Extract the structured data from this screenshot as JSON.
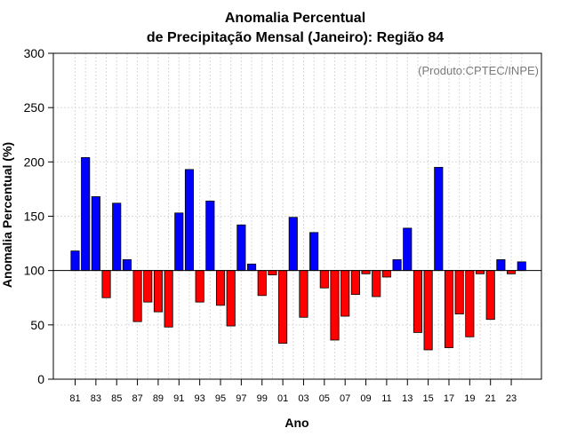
{
  "chart_data": {
    "type": "bar",
    "title": [
      "Anomalia Percentual",
      "de Precipitação Mensal (Janeiro): Região 84"
    ],
    "xlabel": "Ano",
    "ylabel": "Anomalia Percentual (%)",
    "annotation": "(Produto:CPTEC/INPE)",
    "ylim": [
      0,
      300
    ],
    "baseline": 100,
    "yticks": [
      0,
      50,
      100,
      150,
      200,
      250,
      300
    ],
    "grid": true,
    "colors": {
      "above": "#0000ff",
      "below": "#ff0000",
      "axis": "#000000",
      "grid": "#d9d9d9"
    },
    "categories": [
      "81",
      "82",
      "83",
      "84",
      "85",
      "86",
      "87",
      "88",
      "89",
      "90",
      "91",
      "92",
      "93",
      "94",
      "95",
      "96",
      "97",
      "98",
      "99",
      "00",
      "01",
      "02",
      "03",
      "04",
      "05",
      "06",
      "07",
      "08",
      "09",
      "10",
      "11",
      "12",
      "13",
      "14",
      "15",
      "16",
      "17",
      "18",
      "19",
      "20",
      "21",
      "22",
      "23",
      "24"
    ],
    "xtick_labels": [
      "81",
      "83",
      "85",
      "87",
      "89",
      "91",
      "93",
      "95",
      "97",
      "99",
      "01",
      "03",
      "05",
      "07",
      "09",
      "11",
      "13",
      "15",
      "17",
      "19",
      "21",
      "23"
    ],
    "values": [
      118,
      204,
      168,
      75,
      162,
      110,
      53,
      71,
      62,
      48,
      153,
      193,
      71,
      164,
      68,
      49,
      142,
      106,
      77,
      96,
      33,
      149,
      57,
      135,
      84,
      36,
      58,
      78,
      97,
      76,
      94,
      110,
      139,
      43,
      27,
      195,
      29,
      60,
      39,
      97,
      55,
      110,
      97,
      108
    ]
  }
}
